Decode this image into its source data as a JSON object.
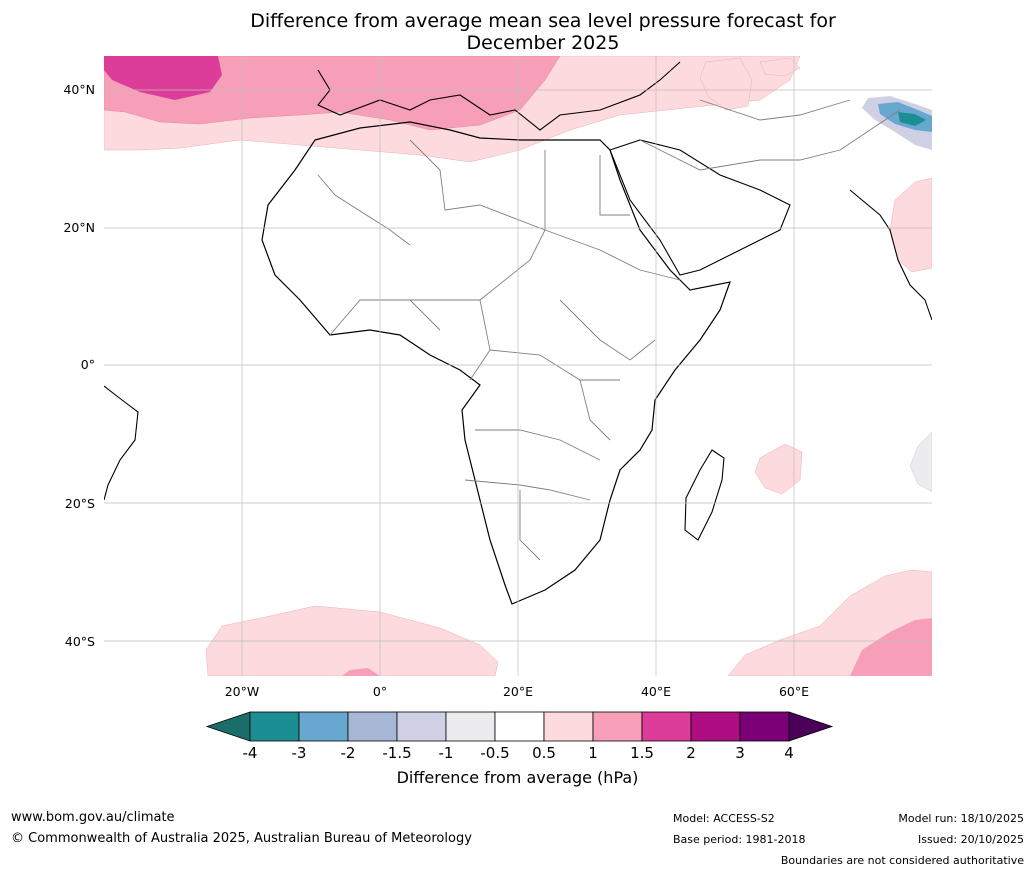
{
  "title_line1": "Difference from average mean sea level pressure forecast for",
  "title_line2": "December 2025",
  "lat_labels": [
    "40°N",
    "20°N",
    "0°",
    "20°S",
    "40°S"
  ],
  "lon_labels": [
    "20°W",
    "0°",
    "20°E",
    "40°E",
    "60°E"
  ],
  "colorbar": {
    "ticks": [
      "-4",
      "-3",
      "-2",
      "-1.5",
      "-1",
      "-0.5",
      "0.5",
      "1",
      "1.5",
      "2",
      "3",
      "4"
    ],
    "colors": [
      "#1a6e6a",
      "#1b8e93",
      "#68a8d0",
      "#a7b8d6",
      "#cfd0e4",
      "#ececef",
      "#ffffff",
      "#fddadd",
      "#f79fb8",
      "#db3d98",
      "#ad0f82",
      "#7b0077",
      "#4b005a"
    ],
    "label": "Difference from average (hPa)"
  },
  "footer": {
    "url": "www.bom.gov.au/climate",
    "copyright": "© Commonwealth of Australia 2025, Australian Bureau of Meteorology",
    "model": "Model: ACCESS-S2",
    "base_period": "Base period: 1981-2018",
    "model_run": "Model run: 18/10/2025",
    "issued": "Issued: 20/10/2025",
    "disclaimer": "Boundaries are not considered authoritative"
  }
}
